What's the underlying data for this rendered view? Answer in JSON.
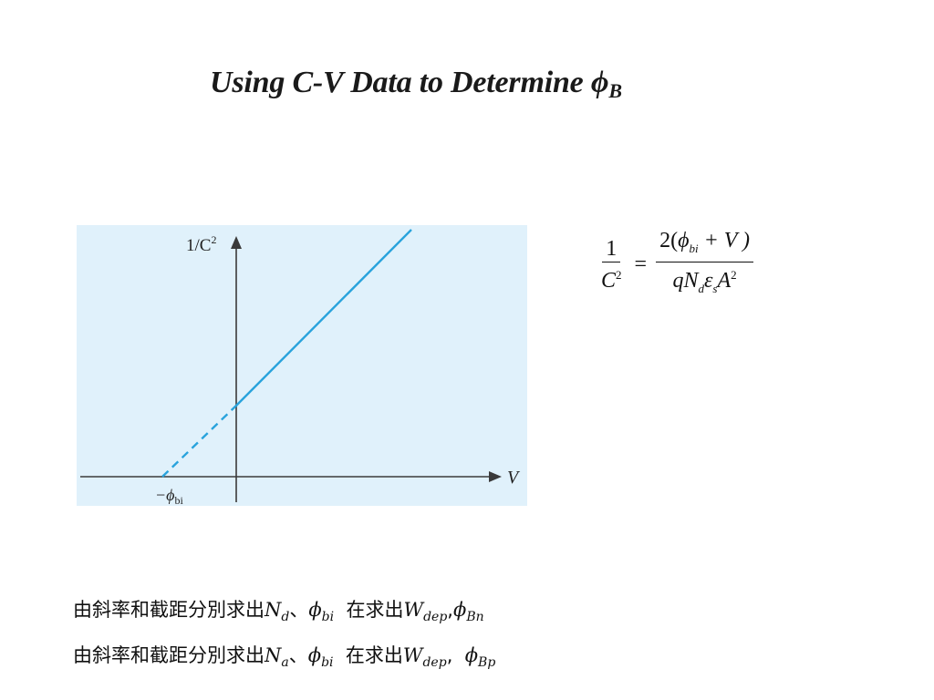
{
  "title": {
    "text": "Using C-V Data to Determine ",
    "symbol": "ϕ",
    "subscript": "B"
  },
  "diagram": {
    "y_axis_label_base": "1/C",
    "y_axis_label_exp": "2",
    "x_axis_label": "V",
    "intercept_label": "−ϕ",
    "intercept_label_sub": "bi",
    "background_color": "#e0f1fb",
    "line_color": "#29a3dc",
    "axis_color": "#3a3a3a"
  },
  "formula": {
    "lhs_num": "1",
    "lhs_den_base": "C",
    "lhs_den_exp": "2",
    "equals": "=",
    "rhs_num_pre": "2(",
    "rhs_num_phi": "ϕ",
    "rhs_num_phi_sub": "bi",
    "rhs_num_post": " + V )",
    "rhs_den_q": "qN",
    "rhs_den_q_sub": "d",
    "rhs_den_eps": "ε",
    "rhs_den_eps_sub": "s",
    "rhs_den_A": "A",
    "rhs_den_A_exp": "2"
  },
  "notes": [
    {
      "prefix": "由斜率和截距分別求出",
      "var1": "N",
      "var1_sub": "d",
      "sep": "、",
      "var2": "ϕ",
      "var2_sub": "bi",
      "middle": "  在求出",
      "var3": "W",
      "var3_sub": "dep",
      "comma": ",",
      "var4": "ϕ",
      "var4_sub": "Bn"
    },
    {
      "prefix": "由斜率和截距分別求出",
      "var1": "N",
      "var1_sub": "a",
      "sep": "、",
      "var2": "ϕ",
      "var2_sub": "bi",
      "middle": "  在求出",
      "var3": "W",
      "var3_sub": "dep",
      "comma": ",  ",
      "var4": "ϕ",
      "var4_sub": "Bp"
    }
  ]
}
